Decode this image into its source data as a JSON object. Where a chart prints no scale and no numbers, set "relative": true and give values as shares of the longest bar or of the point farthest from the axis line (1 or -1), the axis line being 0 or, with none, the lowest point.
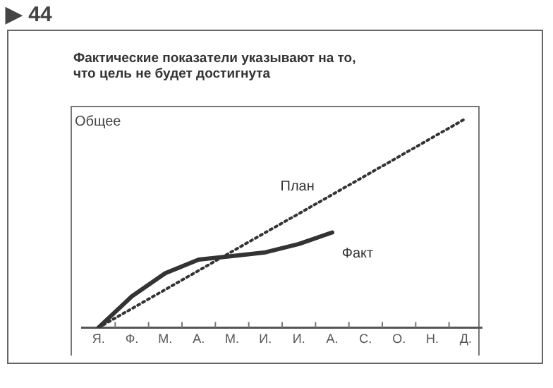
{
  "chart_data": {
    "type": "line",
    "title": "Фактические показатели указывают на то,\nчто цель не будет достигнута",
    "ylabel": "Общее",
    "annotations": [
      "▶ 44"
    ],
    "relative": true,
    "marker": "none",
    "grid": false,
    "legend": false,
    "categories": [
      "Я.",
      "Ф.",
      "М.",
      "А.",
      "М.",
      "И.",
      "И.",
      "А.",
      "С.",
      "О.",
      "Н.",
      "Д."
    ],
    "series": [
      {
        "name": "План",
        "color": "#333333",
        "line_style": "dotted",
        "values": [
          0,
          0.091,
          0.182,
          0.273,
          0.364,
          0.455,
          0.545,
          0.636,
          0.727,
          0.818,
          0.909,
          1
        ]
      },
      {
        "name": "Факт",
        "color": "#333333",
        "line_style": "solid",
        "values": [
          0,
          0.15,
          0.26,
          0.325,
          0.342,
          0.36,
          0.4,
          0.455,
          null,
          null,
          null,
          null
        ]
      }
    ]
  }
}
